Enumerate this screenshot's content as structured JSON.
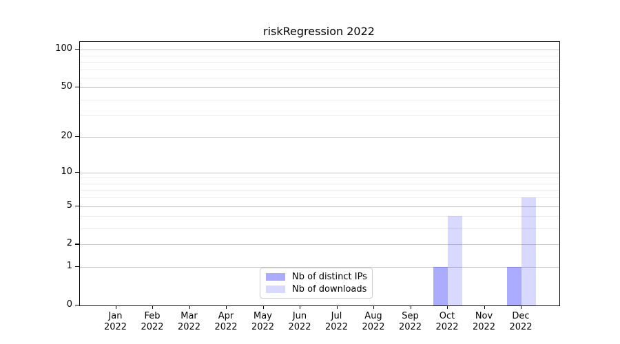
{
  "title": "riskRegression 2022",
  "chart_data": {
    "type": "bar",
    "title": "riskRegression 2022",
    "categories": [
      "Jan\n2022",
      "Feb\n2022",
      "Mar\n2022",
      "Apr\n2022",
      "May\n2022",
      "Jun\n2022",
      "Jul\n2022",
      "Aug\n2022",
      "Sep\n2022",
      "Oct\n2022",
      "Nov\n2022",
      "Dec\n2022"
    ],
    "series": [
      {
        "name": "Nb of distinct IPs",
        "color": "rgba(0,0,255,0.33)",
        "values": [
          0,
          0,
          0,
          0,
          0,
          0,
          0,
          0,
          0,
          1,
          0,
          1
        ]
      },
      {
        "name": "Nb of downloads",
        "color": "rgba(0,0,255,0.15)",
        "values": [
          0,
          0,
          0,
          0,
          0,
          0,
          0,
          0,
          0,
          4,
          0,
          6
        ]
      }
    ],
    "xlabel": "",
    "ylabel": "",
    "yscale": "log1p",
    "ylim": [
      0,
      115
    ],
    "y_major_ticks": [
      0,
      1,
      2,
      5,
      10,
      20,
      50,
      100
    ],
    "y_minor_gridlines": [
      3,
      4,
      6,
      7,
      8,
      9,
      30,
      40,
      60,
      70,
      80,
      90
    ],
    "grid": true,
    "legend_position": "inside-bottom-center",
    "colors": {
      "bar_distinct_ips": "rgba(0,0,255,0.33)",
      "bar_downloads": "rgba(0,0,255,0.15)",
      "grid_major": "#c6c6c6",
      "grid_minor": "#ececec",
      "frame": "#000000",
      "background": "#ffffff"
    }
  }
}
